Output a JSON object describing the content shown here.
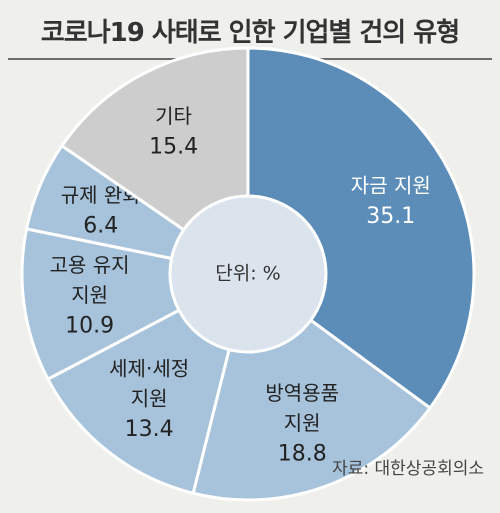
{
  "title": "코로나19 사태로 인한 기업별 건의 유형",
  "unit_label": "단위: %",
  "source": "자료: 대한상공회의소",
  "chart_data": {
    "type": "pie",
    "title": "코로나19 사태로 인한 기업별 건의 유형",
    "unit": "%",
    "start_angle_deg": 0,
    "direction": "clockwise",
    "slices": [
      {
        "label": [
          "자금 지원"
        ],
        "value": 35.1,
        "value_text": "35.1",
        "color": "#5b8db8",
        "text_color": "#ffffff"
      },
      {
        "label": [
          "방역용품",
          "지원"
        ],
        "value": 18.8,
        "value_text": "18.8",
        "color": "#a6c3db",
        "text_color": "#222222"
      },
      {
        "label": [
          "세제·세정",
          "지원"
        ],
        "value": 13.4,
        "value_text": "13.4",
        "color": "#a6c3db",
        "text_color": "#222222"
      },
      {
        "label": [
          "고용 유지",
          "지원"
        ],
        "value": 10.9,
        "value_text": "10.9",
        "color": "#a6c3db",
        "text_color": "#222222"
      },
      {
        "label": [
          "규제 완화"
        ],
        "value": 6.4,
        "value_text": "6.4",
        "color": "#a6c3db",
        "text_color": "#222222"
      },
      {
        "label": [
          "기타"
        ],
        "value": 15.4,
        "value_text": "15.4",
        "color": "#cdcdcd",
        "text_color": "#222222"
      }
    ],
    "center_hole_color": "#dbe4ec",
    "slice_border_color": "#ffffff"
  }
}
